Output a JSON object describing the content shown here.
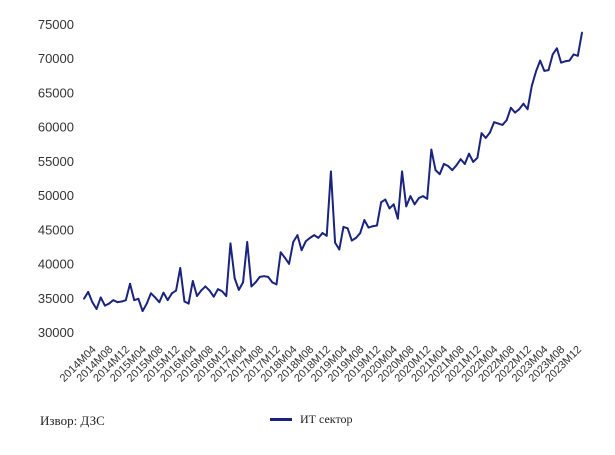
{
  "source_note": "Извор: ДЗС",
  "legend": {
    "label": "ИТ сектор"
  },
  "colors": {
    "line": "#1a237e",
    "text": "#333333"
  },
  "chart_data": {
    "type": "line",
    "y_ticks": [
      30000,
      35000,
      40000,
      45000,
      50000,
      55000,
      60000,
      65000,
      70000,
      75000
    ],
    "ylim": [
      30000,
      75000
    ],
    "x_ticks": [
      "2014M04",
      "2014M08",
      "2014M12",
      "2015M04",
      "2015M08",
      "2015M12",
      "2016M04",
      "2016M08",
      "2016M12",
      "2017M04",
      "2017M08",
      "2017M12",
      "2018M04",
      "2018M08",
      "2018M12",
      "2019M04",
      "2019M08",
      "2019M12",
      "2020M04",
      "2020M08",
      "2020M12",
      "2021M04",
      "2021M08",
      "2021M12",
      "2022M04",
      "2022M08",
      "2022M12",
      "2023M04",
      "2023M08",
      "2023M12"
    ],
    "grid": false,
    "legend_position": "bottom",
    "series": [
      {
        "name": "ИТ сектор",
        "x": [
          "2014M01",
          "2014M02",
          "2014M03",
          "2014M04",
          "2014M05",
          "2014M06",
          "2014M07",
          "2014M08",
          "2014M09",
          "2014M10",
          "2014M11",
          "2014M12",
          "2015M01",
          "2015M02",
          "2015M03",
          "2015M04",
          "2015M05",
          "2015M06",
          "2015M07",
          "2015M08",
          "2015M09",
          "2015M10",
          "2015M11",
          "2015M12",
          "2016M01",
          "2016M02",
          "2016M03",
          "2016M04",
          "2016M05",
          "2016M06",
          "2016M07",
          "2016M08",
          "2016M09",
          "2016M10",
          "2016M11",
          "2016M12",
          "2017M01",
          "2017M02",
          "2017M03",
          "2017M04",
          "2017M05",
          "2017M06",
          "2017M07",
          "2017M08",
          "2017M09",
          "2017M10",
          "2017M11",
          "2017M12",
          "2018M01",
          "2018M02",
          "2018M03",
          "2018M04",
          "2018M05",
          "2018M06",
          "2018M07",
          "2018M08",
          "2018M09",
          "2018M10",
          "2018M11",
          "2018M12",
          "2019M01",
          "2019M02",
          "2019M03",
          "2019M04",
          "2019M05",
          "2019M06",
          "2019M07",
          "2019M08",
          "2019M09",
          "2019M10",
          "2019M11",
          "2019M12",
          "2020M01",
          "2020M02",
          "2020M03",
          "2020M04",
          "2020M05",
          "2020M06",
          "2020M07",
          "2020M08",
          "2020M09",
          "2020M10",
          "2020M11",
          "2020M12",
          "2021M01",
          "2021M02",
          "2021M03",
          "2021M04",
          "2021M05",
          "2021M06",
          "2021M07",
          "2021M08",
          "2021M09",
          "2021M10",
          "2021M11",
          "2021M12",
          "2022M01",
          "2022M02",
          "2022M03",
          "2022M04",
          "2022M05",
          "2022M06",
          "2022M07",
          "2022M08",
          "2022M09",
          "2022M10",
          "2022M11",
          "2022M12",
          "2023M01",
          "2023M02",
          "2023M03",
          "2023M04",
          "2023M05",
          "2023M06",
          "2023M07",
          "2023M08",
          "2023M09",
          "2023M10",
          "2023M11",
          "2023M12"
        ],
        "values": [
          35000,
          36000,
          34500,
          33500,
          35200,
          34000,
          34300,
          34800,
          34500,
          34600,
          34800,
          37200,
          34800,
          35000,
          33200,
          34300,
          35800,
          35200,
          34500,
          35900,
          34800,
          35800,
          36200,
          39500,
          34600,
          34300,
          37600,
          35400,
          36200,
          36800,
          36200,
          35300,
          36400,
          36100,
          35400,
          43100,
          38000,
          36300,
          37400,
          43300,
          36800,
          37400,
          38200,
          38300,
          38200,
          37400,
          37100,
          41800,
          41000,
          40100,
          43300,
          44300,
          42100,
          43400,
          43900,
          44300,
          43900,
          44600,
          44200,
          53600,
          43200,
          42200,
          45500,
          45300,
          43500,
          43900,
          44600,
          46500,
          45400,
          45600,
          45700,
          49100,
          49500,
          48200,
          48800,
          46700,
          53600,
          48500,
          50000,
          48800,
          49700,
          50000,
          49600,
          56800,
          53800,
          53200,
          54700,
          54400,
          53800,
          54500,
          55400,
          54700,
          56200,
          55000,
          55600,
          59200,
          58500,
          59300,
          60800,
          60600,
          60400,
          61100,
          62900,
          62200,
          62700,
          63500,
          62700,
          66100,
          68200,
          69800,
          68300,
          68400,
          70700,
          71600,
          69500,
          69700,
          69800,
          70700,
          70500,
          73900
        ]
      }
    ]
  }
}
